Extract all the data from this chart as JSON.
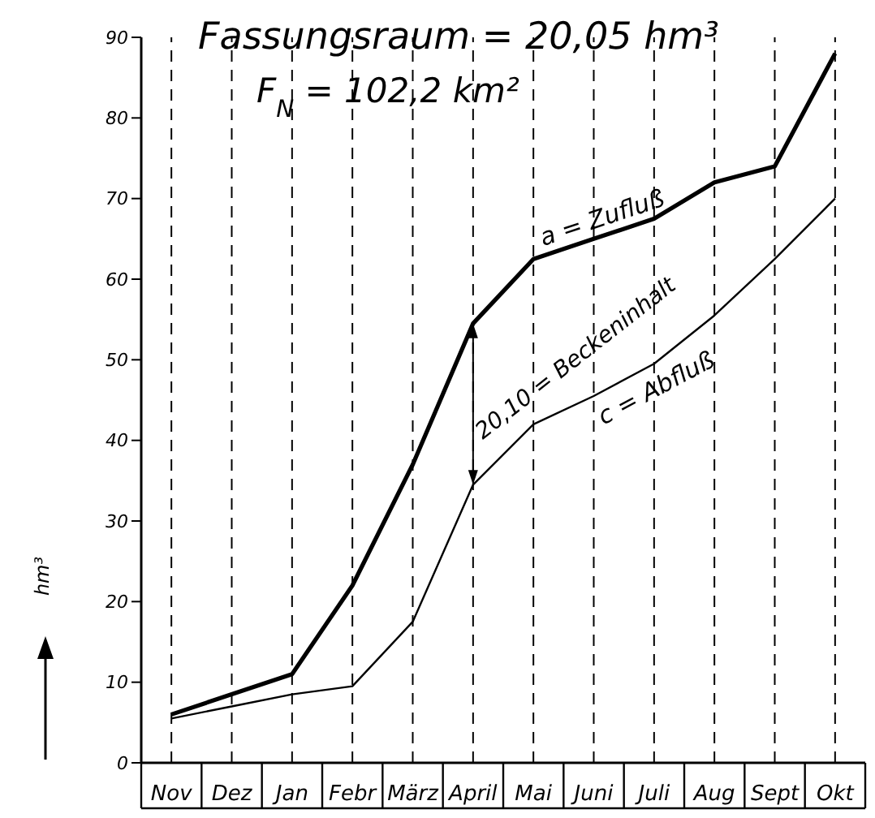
{
  "chart_data": {
    "type": "line",
    "title": "Fassungsraum = 20,05 hm³",
    "subtitle": "F$_{N}$ = 102,2 km²",
    "ylabel": "hm³",
    "categories": [
      "Nov",
      "Dez",
      "Jan",
      "Febr",
      "März",
      "April",
      "Mai",
      "Juni",
      "Juli",
      "Aug",
      "Sept",
      "Okt"
    ],
    "series": [
      {
        "name": "a = Zufluß",
        "color": "#000000",
        "values": [
          6,
          8.5,
          11,
          22,
          37,
          54.5,
          62.5,
          65,
          67.5,
          72,
          74,
          88
        ]
      },
      {
        "name": "c = Abfluß",
        "color": "#000000",
        "values": [
          5.5,
          7,
          8.5,
          9.5,
          17.5,
          34.5,
          42,
          45.5,
          49.5,
          55.5,
          62.5,
          70
        ]
      }
    ],
    "ylim": [
      0,
      90
    ],
    "yticks": [
      0,
      10,
      20,
      30,
      40,
      50,
      60,
      70,
      80,
      90
    ],
    "grid": "x",
    "legend": false,
    "marker": "none",
    "line_style": "solid",
    "annotations": [
      "20,10 = Beckeninhalt"
    ]
  }
}
